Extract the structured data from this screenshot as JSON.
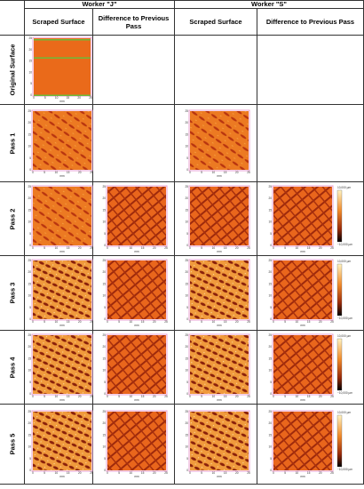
{
  "header": {
    "workers": [
      "Worker \"J\"",
      "Worker \"S\""
    ],
    "columns": [
      "Scraped Surface",
      "Difference to Previous Pass",
      "Scraped Surface",
      "Difference to Previous Pass"
    ]
  },
  "rows": [
    "Original Surface",
    "Pass 1",
    "Pass 2",
    "Pass 3",
    "Pass 4",
    "Pass 5"
  ],
  "axis": {
    "ticks": [
      "0",
      "5",
      "10",
      "15",
      "20",
      "25"
    ],
    "unit": "mm"
  },
  "colorbar": {
    "top": "10,000 µm",
    "bottom": "−10,000 µm"
  }
}
